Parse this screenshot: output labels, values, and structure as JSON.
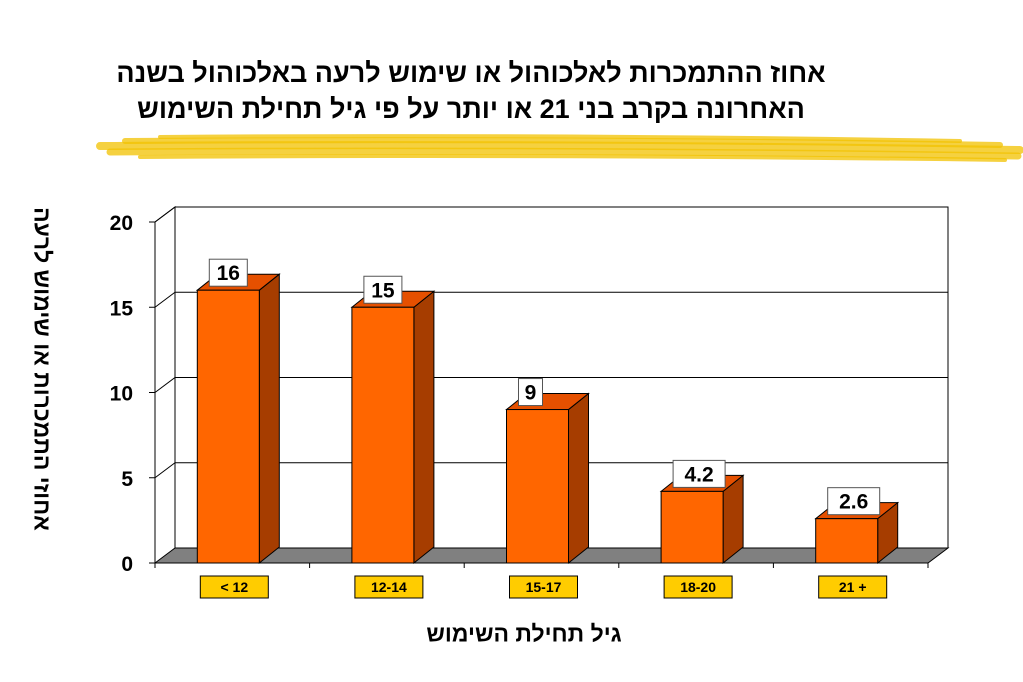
{
  "title": {
    "line1": "אחוז ההתמכרות לאלכוהול או שימוש לרעה באלכוהול בשנה",
    "line2": "האחרונה בקרב בני 21 או יותר על פי גיל תחילת השימוש"
  },
  "colors": {
    "bar_front": "#ff6600",
    "bar_side": "#a63d00",
    "bar_top": "#e55000",
    "category_label_bg": "#ffcc00",
    "brush_stroke": "#f2c200",
    "floor": "#808080"
  },
  "chart_data": {
    "type": "bar",
    "title": "אחוז ההתמכרות לאלכוהול או שימוש לרעה באלכוהול בשנה האחרונה בקרב בני 21 או יותר על פי גיל תחילת השימוש",
    "xlabel": "גיל תחילת השימוש",
    "ylabel": "אחוזי התמכרות או שימוש לרעה",
    "categories": [
      "< 12",
      "12-14",
      "15-17",
      "18-20",
      "21 +"
    ],
    "values": [
      16,
      15,
      9,
      4.2,
      2.6
    ],
    "data_labels": [
      "16",
      "15",
      "9",
      "4.2",
      "2.6"
    ],
    "yticks": [
      0,
      5,
      10,
      15,
      20
    ],
    "ylim": [
      0,
      20
    ],
    "grid": true,
    "legend": "none",
    "style": "3d"
  }
}
